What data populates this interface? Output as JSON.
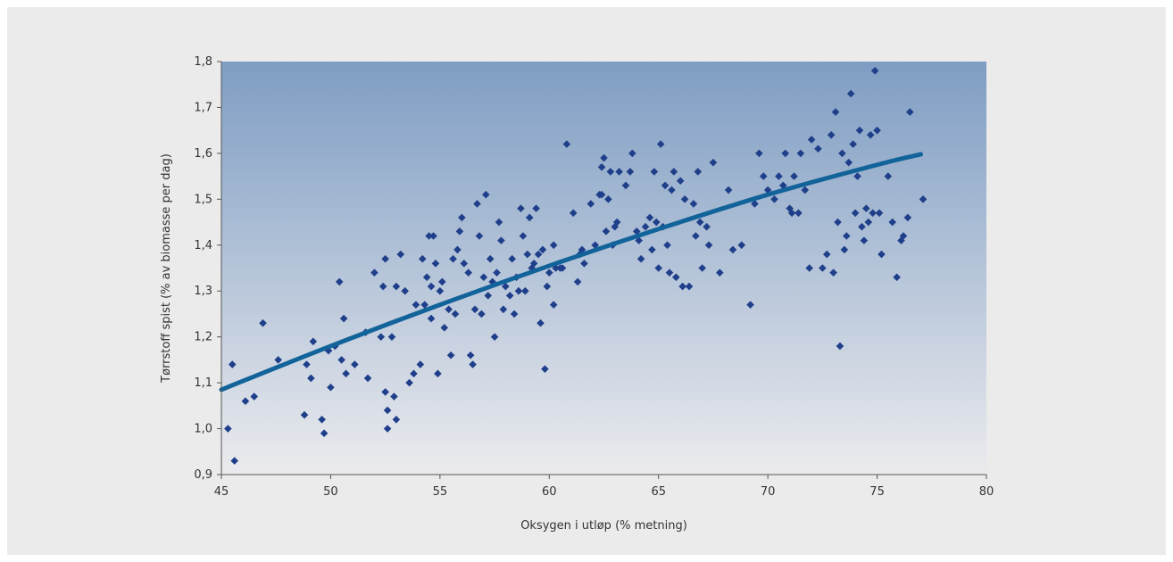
{
  "colors": {
    "frame_bg": "#ebebeb",
    "plot_top": "#7e9dc3",
    "plot_bottom": "#ebebee",
    "marker": "#1f3f8a",
    "trend": "#12639a"
  },
  "chart_data": {
    "type": "scatter",
    "title": "",
    "xlabel": "Oksygen i utløp (% metning)",
    "ylabel": "Tørrstoff spist (% av biomasse per dag)",
    "xlim": [
      45,
      80
    ],
    "ylim": [
      0.9,
      1.8
    ],
    "grid": false,
    "x_ticks": [
      "45",
      "50",
      "55",
      "60",
      "65",
      "70",
      "75",
      "80"
    ],
    "y_ticks": [
      "0,9",
      "1,0",
      "1,1",
      "1,2",
      "1,3",
      "1,4",
      "1,5",
      "1,6",
      "1,7",
      "1,8"
    ],
    "series": [
      {
        "marker": "diamond",
        "points": [
          [
            45.3,
            1.0
          ],
          [
            45.5,
            1.14
          ],
          [
            45.6,
            0.93
          ],
          [
            46.1,
            1.06
          ],
          [
            46.5,
            1.07
          ],
          [
            46.9,
            1.23
          ],
          [
            47.6,
            1.15
          ],
          [
            48.8,
            1.03
          ],
          [
            48.9,
            1.14
          ],
          [
            49.1,
            1.11
          ],
          [
            49.2,
            1.19
          ],
          [
            49.6,
            1.02
          ],
          [
            49.7,
            0.99
          ],
          [
            49.9,
            1.17
          ],
          [
            50.0,
            1.09
          ],
          [
            50.2,
            1.18
          ],
          [
            50.4,
            1.32
          ],
          [
            50.5,
            1.15
          ],
          [
            50.6,
            1.24
          ],
          [
            50.7,
            1.12
          ],
          [
            51.1,
            1.14
          ],
          [
            51.6,
            1.21
          ],
          [
            51.7,
            1.11
          ],
          [
            52.0,
            1.34
          ],
          [
            52.3,
            1.2
          ],
          [
            52.4,
            1.31
          ],
          [
            52.5,
            1.37
          ],
          [
            52.5,
            1.08
          ],
          [
            52.6,
            1.04
          ],
          [
            52.6,
            1.0
          ],
          [
            52.8,
            1.2
          ],
          [
            52.9,
            1.07
          ],
          [
            53.0,
            1.31
          ],
          [
            53.0,
            1.02
          ],
          [
            53.2,
            1.38
          ],
          [
            53.4,
            1.3
          ],
          [
            53.6,
            1.1
          ],
          [
            53.8,
            1.12
          ],
          [
            53.9,
            1.27
          ],
          [
            54.1,
            1.14
          ],
          [
            54.2,
            1.37
          ],
          [
            54.3,
            1.27
          ],
          [
            54.4,
            1.33
          ],
          [
            54.5,
            1.42
          ],
          [
            54.6,
            1.31
          ],
          [
            54.6,
            1.24
          ],
          [
            54.7,
            1.42
          ],
          [
            54.8,
            1.36
          ],
          [
            54.9,
            1.12
          ],
          [
            55.0,
            1.3
          ],
          [
            55.1,
            1.32
          ],
          [
            55.2,
            1.22
          ],
          [
            55.4,
            1.26
          ],
          [
            55.5,
            1.16
          ],
          [
            55.6,
            1.37
          ],
          [
            55.7,
            1.25
          ],
          [
            55.8,
            1.39
          ],
          [
            55.9,
            1.43
          ],
          [
            56.0,
            1.46
          ],
          [
            56.1,
            1.36
          ],
          [
            56.3,
            1.34
          ],
          [
            56.4,
            1.16
          ],
          [
            56.5,
            1.14
          ],
          [
            56.6,
            1.26
          ],
          [
            56.7,
            1.49
          ],
          [
            56.8,
            1.42
          ],
          [
            56.9,
            1.25
          ],
          [
            57.0,
            1.33
          ],
          [
            57.1,
            1.51
          ],
          [
            57.2,
            1.29
          ],
          [
            57.3,
            1.37
          ],
          [
            57.4,
            1.32
          ],
          [
            57.5,
            1.2
          ],
          [
            57.6,
            1.34
          ],
          [
            57.7,
            1.45
          ],
          [
            57.8,
            1.41
          ],
          [
            57.9,
            1.26
          ],
          [
            58.0,
            1.31
          ],
          [
            58.2,
            1.29
          ],
          [
            58.3,
            1.37
          ],
          [
            58.4,
            1.25
          ],
          [
            58.5,
            1.33
          ],
          [
            58.6,
            1.3
          ],
          [
            58.7,
            1.48
          ],
          [
            58.8,
            1.42
          ],
          [
            58.9,
            1.3
          ],
          [
            59.0,
            1.38
          ],
          [
            59.1,
            1.46
          ],
          [
            59.2,
            1.35
          ],
          [
            59.3,
            1.36
          ],
          [
            59.4,
            1.48
          ],
          [
            59.5,
            1.38
          ],
          [
            59.6,
            1.23
          ],
          [
            59.7,
            1.39
          ],
          [
            59.8,
            1.13
          ],
          [
            59.9,
            1.31
          ],
          [
            60.0,
            1.34
          ],
          [
            60.2,
            1.4
          ],
          [
            60.2,
            1.27
          ],
          [
            60.3,
            1.35
          ],
          [
            60.5,
            1.35
          ],
          [
            60.6,
            1.35
          ],
          [
            60.8,
            1.62
          ],
          [
            61.1,
            1.47
          ],
          [
            61.3,
            1.32
          ],
          [
            61.4,
            1.38
          ],
          [
            61.5,
            1.39
          ],
          [
            61.6,
            1.36
          ],
          [
            61.9,
            1.49
          ],
          [
            62.1,
            1.4
          ],
          [
            62.3,
            1.51
          ],
          [
            62.4,
            1.57
          ],
          [
            62.4,
            1.51
          ],
          [
            62.5,
            1.59
          ],
          [
            62.6,
            1.43
          ],
          [
            62.7,
            1.5
          ],
          [
            62.8,
            1.56
          ],
          [
            62.9,
            1.4
          ],
          [
            63.0,
            1.44
          ],
          [
            63.1,
            1.45
          ],
          [
            63.2,
            1.56
          ],
          [
            63.5,
            1.53
          ],
          [
            63.7,
            1.56
          ],
          [
            63.8,
            1.6
          ],
          [
            64.0,
            1.43
          ],
          [
            64.1,
            1.41
          ],
          [
            64.2,
            1.37
          ],
          [
            64.4,
            1.44
          ],
          [
            64.6,
            1.46
          ],
          [
            64.7,
            1.39
          ],
          [
            64.8,
            1.56
          ],
          [
            64.9,
            1.45
          ],
          [
            65.0,
            1.35
          ],
          [
            65.1,
            1.62
          ],
          [
            65.2,
            1.44
          ],
          [
            65.3,
            1.53
          ],
          [
            65.4,
            1.4
          ],
          [
            65.5,
            1.34
          ],
          [
            65.6,
            1.52
          ],
          [
            65.7,
            1.56
          ],
          [
            65.8,
            1.33
          ],
          [
            66.0,
            1.54
          ],
          [
            66.1,
            1.31
          ],
          [
            66.2,
            1.5
          ],
          [
            66.4,
            1.31
          ],
          [
            66.6,
            1.49
          ],
          [
            66.7,
            1.42
          ],
          [
            66.8,
            1.56
          ],
          [
            66.9,
            1.45
          ],
          [
            67.0,
            1.35
          ],
          [
            67.2,
            1.44
          ],
          [
            67.3,
            1.4
          ],
          [
            67.5,
            1.58
          ],
          [
            67.8,
            1.34
          ],
          [
            68.2,
            1.52
          ],
          [
            68.4,
            1.39
          ],
          [
            68.8,
            1.4
          ],
          [
            69.2,
            1.27
          ],
          [
            69.4,
            1.49
          ],
          [
            69.6,
            1.6
          ],
          [
            69.8,
            1.55
          ],
          [
            70.0,
            1.52
          ],
          [
            70.3,
            1.5
          ],
          [
            70.5,
            1.55
          ],
          [
            70.7,
            1.53
          ],
          [
            70.8,
            1.6
          ],
          [
            71.0,
            1.48
          ],
          [
            71.1,
            1.47
          ],
          [
            71.2,
            1.55
          ],
          [
            71.4,
            1.47
          ],
          [
            71.5,
            1.6
          ],
          [
            71.7,
            1.52
          ],
          [
            71.9,
            1.35
          ],
          [
            72.0,
            1.63
          ],
          [
            72.3,
            1.61
          ],
          [
            72.5,
            1.35
          ],
          [
            72.7,
            1.38
          ],
          [
            72.9,
            1.64
          ],
          [
            73.0,
            1.34
          ],
          [
            73.1,
            1.69
          ],
          [
            73.2,
            1.45
          ],
          [
            73.3,
            1.18
          ],
          [
            73.4,
            1.6
          ],
          [
            73.5,
            1.39
          ],
          [
            73.6,
            1.42
          ],
          [
            73.7,
            1.58
          ],
          [
            73.8,
            1.73
          ],
          [
            73.9,
            1.62
          ],
          [
            74.0,
            1.47
          ],
          [
            74.1,
            1.55
          ],
          [
            74.2,
            1.65
          ],
          [
            74.3,
            1.44
          ],
          [
            74.4,
            1.41
          ],
          [
            74.5,
            1.48
          ],
          [
            74.6,
            1.45
          ],
          [
            74.7,
            1.64
          ],
          [
            74.8,
            1.47
          ],
          [
            74.9,
            1.78
          ],
          [
            75.0,
            1.65
          ],
          [
            75.1,
            1.47
          ],
          [
            75.2,
            1.38
          ],
          [
            75.5,
            1.55
          ],
          [
            75.7,
            1.45
          ],
          [
            75.9,
            1.33
          ],
          [
            76.1,
            1.41
          ],
          [
            76.2,
            1.42
          ],
          [
            76.4,
            1.46
          ],
          [
            76.5,
            1.69
          ],
          [
            77.1,
            1.5
          ]
        ]
      },
      {
        "type": "line",
        "points": [
          [
            45.0,
            1.085
          ],
          [
            50.0,
            1.18
          ],
          [
            55.0,
            1.27
          ],
          [
            60.0,
            1.355
          ],
          [
            65.0,
            1.435
          ],
          [
            70.0,
            1.51
          ],
          [
            75.0,
            1.575
          ],
          [
            77.0,
            1.598
          ]
        ]
      }
    ]
  }
}
